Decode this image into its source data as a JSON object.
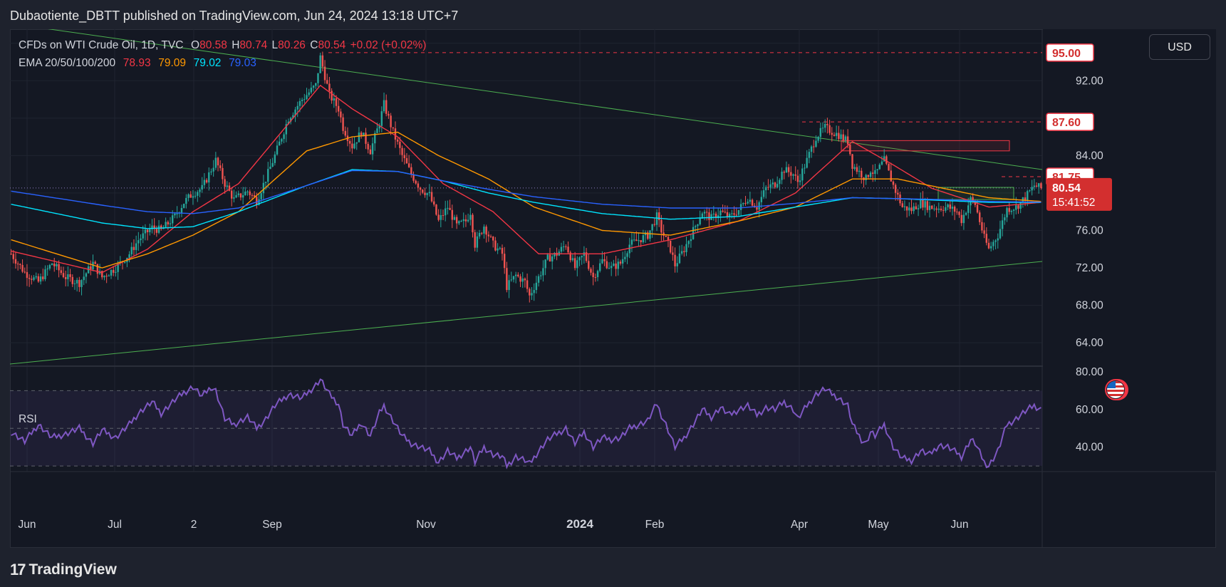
{
  "header": {
    "publisher_line": "Dubaotiente_DBTT published on TradingView.com, Jun 24, 2024 13:18 UTC+7"
  },
  "legend": {
    "symbol": "CFDs on WTI Crude Oil, 1D, TVC",
    "o_label": "O",
    "o_value": "80.58",
    "h_label": "H",
    "h_value": "80.74",
    "l_label": "L",
    "l_value": "80.26",
    "c_label": "C",
    "c_value": "80.54",
    "change": "+0.02 (+0.02%)",
    "ema_label": "EMA 20/50/100/200",
    "ema20": "78.93",
    "ema50": "79.09",
    "ema100": "79.02",
    "ema200": "79.03"
  },
  "currency_button": "USD",
  "rsi_label": "RSI",
  "footer": {
    "brand": "TradingView",
    "logo_glyph": "17"
  },
  "colors": {
    "up": "#26a69a",
    "down": "#ef5350",
    "ema20": "#f23645",
    "ema50": "#ff9800",
    "ema100": "#00e5ff",
    "ema200": "#2962ff",
    "rsi": "#7e57c2",
    "trend": "#4caf50"
  },
  "chart_data": {
    "type": "candlestick",
    "price_axis": {
      "ticks": [
        "92.00",
        "84.00",
        "76.00",
        "72.00",
        "68.00",
        "64.00"
      ],
      "range": [
        61.5,
        97.5
      ]
    },
    "rsi_axis": {
      "ticks": [
        "80.00",
        "60.00",
        "40.00"
      ],
      "range": [
        27,
        83
      ],
      "band": [
        30,
        70
      ]
    },
    "time_axis": [
      "Jun",
      "Jul",
      "2",
      "Sep",
      "Nov",
      "2024",
      "Feb",
      "Apr",
      "May",
      "Jun"
    ],
    "price_labels": [
      {
        "value": 95.0,
        "text": "95.00",
        "style": "outline"
      },
      {
        "value": 87.6,
        "text": "87.60",
        "style": "outline"
      },
      {
        "value": 81.75,
        "text": "81.75",
        "style": "outline"
      },
      {
        "value": 80.54,
        "text": "80.54",
        "countdown": "15:41:52",
        "style": "solid"
      }
    ],
    "price_path": [
      [
        0,
        73.5
      ],
      [
        6,
        71.5
      ],
      [
        12,
        70.5
      ],
      [
        18,
        72.5
      ],
      [
        24,
        71
      ],
      [
        30,
        70.4
      ],
      [
        36,
        72.5
      ],
      [
        40,
        71
      ],
      [
        46,
        72
      ],
      [
        52,
        73.5
      ],
      [
        56,
        75
      ],
      [
        62,
        76.3
      ],
      [
        66,
        76
      ],
      [
        72,
        77.5
      ],
      [
        76,
        79
      ],
      [
        80,
        80
      ],
      [
        84,
        80.5
      ],
      [
        88,
        82.5
      ],
      [
        90,
        83.5
      ],
      [
        94,
        81
      ],
      [
        98,
        79.3
      ],
      [
        104,
        80.2
      ],
      [
        108,
        79.2
      ],
      [
        112,
        81.5
      ],
      [
        116,
        84
      ],
      [
        122,
        88
      ],
      [
        128,
        90
      ],
      [
        134,
        91.5
      ],
      [
        136,
        94.5
      ],
      [
        140,
        90.5
      ],
      [
        144,
        89
      ],
      [
        146,
        87
      ],
      [
        150,
        85
      ],
      [
        154,
        86.5
      ],
      [
        158,
        84.5
      ],
      [
        162,
        87.5
      ],
      [
        164,
        89.5
      ],
      [
        168,
        86.5
      ],
      [
        172,
        84
      ],
      [
        176,
        82
      ],
      [
        180,
        80.5
      ],
      [
        184,
        79.8
      ],
      [
        188,
        77
      ],
      [
        192,
        78.5
      ],
      [
        196,
        76.5
      ],
      [
        200,
        77
      ],
      [
        202,
        78
      ],
      [
        204,
        74.5
      ],
      [
        208,
        76.5
      ],
      [
        212,
        74.5
      ],
      [
        216,
        73.5
      ],
      [
        218,
        70
      ],
      [
        222,
        71.2
      ],
      [
        226,
        70.5
      ],
      [
        228,
        69
      ],
      [
        232,
        71
      ],
      [
        236,
        73
      ],
      [
        240,
        73.5
      ],
      [
        244,
        74.5
      ],
      [
        248,
        72
      ],
      [
        252,
        73.5
      ],
      [
        256,
        71
      ],
      [
        260,
        72.8
      ],
      [
        264,
        72
      ],
      [
        268,
        72.5
      ],
      [
        272,
        74.5
      ],
      [
        276,
        75
      ],
      [
        280,
        75.5
      ],
      [
        284,
        77.5
      ],
      [
        286,
        76
      ],
      [
        288,
        75
      ],
      [
        290,
        74
      ],
      [
        292,
        72.3
      ],
      [
        296,
        74
      ],
      [
        300,
        76
      ],
      [
        304,
        78
      ],
      [
        308,
        77.3
      ],
      [
        312,
        78
      ],
      [
        316,
        77.4
      ],
      [
        320,
        78.2
      ],
      [
        324,
        79.5
      ],
      [
        328,
        78.5
      ],
      [
        332,
        80.5
      ],
      [
        336,
        81
      ],
      [
        340,
        82.5
      ],
      [
        344,
        82
      ],
      [
        346,
        81.2
      ],
      [
        350,
        83.5
      ],
      [
        354,
        86
      ],
      [
        358,
        87
      ],
      [
        360,
        86.7
      ],
      [
        364,
        86.2
      ],
      [
        368,
        85.5
      ],
      [
        370,
        83
      ],
      [
        374,
        82
      ],
      [
        376,
        81.5
      ],
      [
        378,
        82.5
      ],
      [
        380,
        82
      ],
      [
        384,
        83.5
      ],
      [
        388,
        80.8
      ],
      [
        392,
        78.5
      ],
      [
        396,
        78.2
      ],
      [
        400,
        79
      ],
      [
        404,
        78.5
      ],
      [
        408,
        78.4
      ],
      [
        412,
        78.5
      ],
      [
        416,
        78
      ],
      [
        418,
        77.1
      ],
      [
        422,
        79.3
      ],
      [
        424,
        78.8
      ],
      [
        426,
        77
      ],
      [
        428,
        75.2
      ],
      [
        430,
        74
      ],
      [
        434,
        75.5
      ],
      [
        438,
        78.3
      ],
      [
        442,
        78.5
      ],
      [
        446,
        79.5
      ],
      [
        450,
        80.8
      ],
      [
        453,
        80.5
      ]
    ],
    "ema_series": [
      {
        "name": "EMA 20",
        "points": [
          [
            0,
            73.8
          ],
          [
            40,
            71.5
          ],
          [
            60,
            74
          ],
          [
            80,
            78
          ],
          [
            100,
            81
          ],
          [
            136,
            91.5
          ],
          [
            150,
            89
          ],
          [
            170,
            86
          ],
          [
            190,
            81
          ],
          [
            212,
            78
          ],
          [
            232,
            73.5
          ],
          [
            260,
            73.5
          ],
          [
            290,
            75
          ],
          [
            320,
            77
          ],
          [
            345,
            80
          ],
          [
            370,
            85.5
          ],
          [
            388,
            83
          ],
          [
            405,
            80.5
          ],
          [
            430,
            78.5
          ],
          [
            453,
            79
          ]
        ]
      },
      {
        "name": "EMA 50",
        "points": [
          [
            0,
            75
          ],
          [
            40,
            72
          ],
          [
            60,
            73.5
          ],
          [
            80,
            75.5
          ],
          [
            100,
            78
          ],
          [
            130,
            84.5
          ],
          [
            150,
            86
          ],
          [
            170,
            86.5
          ],
          [
            188,
            84
          ],
          [
            210,
            81.5
          ],
          [
            230,
            78.5
          ],
          [
            260,
            76
          ],
          [
            290,
            75.5
          ],
          [
            320,
            77
          ],
          [
            345,
            78.5
          ],
          [
            370,
            81.5
          ],
          [
            390,
            81.5
          ],
          [
            410,
            80.5
          ],
          [
            430,
            79.5
          ],
          [
            453,
            79.1
          ]
        ]
      },
      {
        "name": "EMA 100",
        "points": [
          [
            0,
            78.8
          ],
          [
            40,
            76.8
          ],
          [
            60,
            76.2
          ],
          [
            80,
            76.4
          ],
          [
            100,
            78
          ],
          [
            130,
            80.8
          ],
          [
            150,
            82.5
          ],
          [
            170,
            82.3
          ],
          [
            190,
            81.3
          ],
          [
            210,
            80
          ],
          [
            230,
            79
          ],
          [
            260,
            77.8
          ],
          [
            290,
            77.2
          ],
          [
            320,
            77.5
          ],
          [
            345,
            78.5
          ],
          [
            370,
            79.5
          ],
          [
            390,
            79.4
          ],
          [
            410,
            79.2
          ],
          [
            430,
            79
          ],
          [
            453,
            79
          ]
        ]
      },
      {
        "name": "EMA 200",
        "points": [
          [
            0,
            80.2
          ],
          [
            40,
            78.7
          ],
          [
            60,
            78
          ],
          [
            80,
            77.8
          ],
          [
            100,
            78.4
          ],
          [
            130,
            80.8
          ],
          [
            150,
            82.4
          ],
          [
            170,
            82.3
          ],
          [
            190,
            81.3
          ],
          [
            210,
            80.4
          ],
          [
            230,
            79.6
          ],
          [
            260,
            78.8
          ],
          [
            290,
            78.4
          ],
          [
            320,
            78.4
          ],
          [
            345,
            78.9
          ],
          [
            370,
            79.5
          ],
          [
            390,
            79.4
          ],
          [
            410,
            79.3
          ],
          [
            430,
            79.1
          ],
          [
            453,
            79.03
          ]
        ]
      }
    ],
    "rsi_path": [
      [
        0,
        48
      ],
      [
        6,
        43
      ],
      [
        12,
        52
      ],
      [
        18,
        45
      ],
      [
        24,
        47
      ],
      [
        30,
        50
      ],
      [
        36,
        42
      ],
      [
        40,
        49
      ],
      [
        46,
        45
      ],
      [
        52,
        52
      ],
      [
        56,
        58
      ],
      [
        62,
        64
      ],
      [
        66,
        58
      ],
      [
        72,
        65
      ],
      [
        76,
        69
      ],
      [
        80,
        72
      ],
      [
        84,
        67
      ],
      [
        88,
        72
      ],
      [
        90,
        70
      ],
      [
        94,
        55
      ],
      [
        98,
        52
      ],
      [
        104,
        56
      ],
      [
        108,
        50
      ],
      [
        112,
        55
      ],
      [
        116,
        62
      ],
      [
        122,
        68
      ],
      [
        128,
        66
      ],
      [
        134,
        73
      ],
      [
        136,
        76
      ],
      [
        140,
        68
      ],
      [
        144,
        63
      ],
      [
        146,
        52
      ],
      [
        150,
        46
      ],
      [
        154,
        53
      ],
      [
        158,
        46
      ],
      [
        162,
        58
      ],
      [
        164,
        62
      ],
      [
        168,
        54
      ],
      [
        172,
        46
      ],
      [
        176,
        42
      ],
      [
        180,
        40
      ],
      [
        184,
        38
      ],
      [
        188,
        32
      ],
      [
        192,
        38
      ],
      [
        196,
        34
      ],
      [
        200,
        38
      ],
      [
        202,
        40
      ],
      [
        204,
        32
      ],
      [
        208,
        40
      ],
      [
        212,
        36
      ],
      [
        216,
        35
      ],
      [
        218,
        30
      ],
      [
        222,
        35
      ],
      [
        226,
        33
      ],
      [
        228,
        31
      ],
      [
        232,
        38
      ],
      [
        236,
        44
      ],
      [
        240,
        47
      ],
      [
        244,
        50
      ],
      [
        248,
        42
      ],
      [
        252,
        48
      ],
      [
        256,
        40
      ],
      [
        260,
        45
      ],
      [
        264,
        44
      ],
      [
        268,
        45
      ],
      [
        272,
        50
      ],
      [
        276,
        52
      ],
      [
        280,
        54
      ],
      [
        284,
        63
      ],
      [
        286,
        57
      ],
      [
        288,
        52
      ],
      [
        290,
        46
      ],
      [
        292,
        40
      ],
      [
        296,
        45
      ],
      [
        300,
        52
      ],
      [
        304,
        60
      ],
      [
        308,
        56
      ],
      [
        312,
        61
      ],
      [
        316,
        57
      ],
      [
        320,
        60
      ],
      [
        324,
        62
      ],
      [
        328,
        57
      ],
      [
        332,
        61
      ],
      [
        336,
        60
      ],
      [
        340,
        64
      ],
      [
        344,
        60
      ],
      [
        346,
        55
      ],
      [
        350,
        62
      ],
      [
        354,
        68
      ],
      [
        358,
        71
      ],
      [
        360,
        69
      ],
      [
        364,
        66
      ],
      [
        368,
        62
      ],
      [
        370,
        52
      ],
      [
        374,
        44
      ],
      [
        376,
        42
      ],
      [
        378,
        48
      ],
      [
        380,
        46
      ],
      [
        384,
        52
      ],
      [
        388,
        40
      ],
      [
        392,
        34
      ],
      [
        396,
        33
      ],
      [
        400,
        38
      ],
      [
        404,
        36
      ],
      [
        408,
        41
      ],
      [
        412,
        40
      ],
      [
        416,
        37
      ],
      [
        418,
        35
      ],
      [
        422,
        44
      ],
      [
        424,
        42
      ],
      [
        426,
        37
      ],
      [
        428,
        32
      ],
      [
        430,
        30
      ],
      [
        434,
        38
      ],
      [
        438,
        52
      ],
      [
        442,
        55
      ],
      [
        446,
        59
      ],
      [
        450,
        62
      ],
      [
        453,
        60
      ]
    ]
  }
}
